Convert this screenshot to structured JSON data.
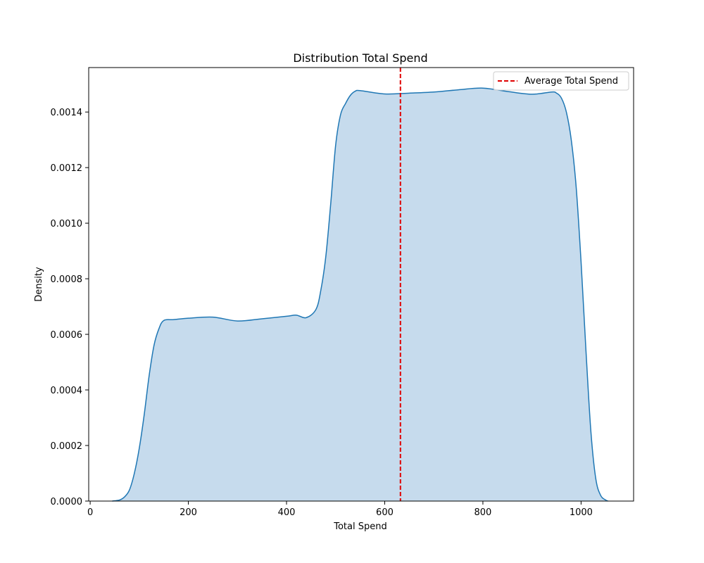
{
  "chart_data": {
    "type": "area",
    "title": "Distribution Total Spend",
    "xlabel": "Total Spend",
    "ylabel": "Density",
    "xlim": [
      -3,
      1107
    ],
    "ylim": [
      0,
      0.00156
    ],
    "xticks": [
      0,
      200,
      400,
      600,
      800,
      1000
    ],
    "xtick_labels": [
      "0",
      "200",
      "400",
      "600",
      "800",
      "1000"
    ],
    "yticks": [
      0,
      0.0002,
      0.0004,
      0.0006,
      0.0008,
      0.001,
      0.0012,
      0.0014
    ],
    "ytick_labels": [
      "0.0000",
      "0.0002",
      "0.0004",
      "0.0006",
      "0.0008",
      "0.0010",
      "0.0012",
      "0.0014"
    ],
    "grid": false,
    "legend_position": "top-right",
    "line_color": "#1f77b4",
    "fill_color": "#c6dbed",
    "reference_line": {
      "label": "Average Total Spend",
      "x": 632,
      "color": "#e00000",
      "style": "dashed"
    },
    "series": [
      {
        "x": [
          45,
          60,
          70,
          80,
          90,
          100,
          110,
          120,
          130,
          140,
          150,
          170,
          200,
          250,
          300,
          350,
          400,
          420,
          440,
          460,
          470,
          480,
          490,
          500,
          510,
          520,
          530,
          540,
          550,
          600,
          650,
          700,
          750,
          800,
          850,
          900,
          940,
          950,
          960,
          970,
          980,
          990,
          1000,
          1010,
          1020,
          1030,
          1040,
          1050,
          1055
        ],
        "y": [
          0,
          4e-06,
          1.5e-05,
          4e-05,
          0.0001,
          0.00019,
          0.00031,
          0.00045,
          0.00056,
          0.00062,
          0.00065,
          0.000653,
          0.000658,
          0.000662,
          0.000648,
          0.000656,
          0.000665,
          0.000669,
          0.00066,
          0.00069,
          0.00076,
          0.00088,
          0.00107,
          0.00128,
          0.00139,
          0.00143,
          0.00146,
          0.001475,
          0.001477,
          0.001465,
          0.001468,
          0.001472,
          0.00148,
          0.001486,
          0.001474,
          0.001464,
          0.001472,
          0.001468,
          0.00145,
          0.0014,
          0.0013,
          0.00113,
          0.00086,
          0.00054,
          0.00025,
          8e-05,
          2e-05,
          4e-06,
          0
        ]
      }
    ]
  }
}
